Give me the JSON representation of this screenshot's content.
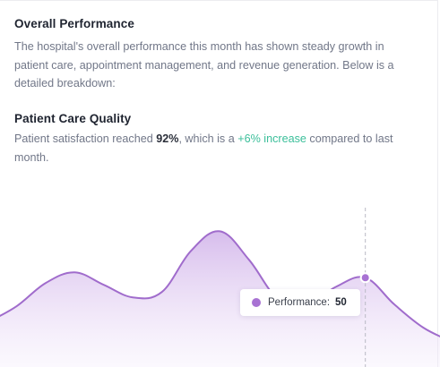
{
  "overall": {
    "title": "Overall Performance",
    "description": "The hospital's overall performance this month has shown steady growth in patient care, appointment management, and revenue generation. Below is a detailed breakdown:"
  },
  "patient_care": {
    "title": "Patient Care Quality",
    "text_before": "Patient satisfaction reached ",
    "value": "92%",
    "text_middle": ", which is a ",
    "change": "+6% increase",
    "text_after": " compared to last month."
  },
  "colors": {
    "accent": "#a872d3",
    "positive": "#3bbf9a"
  },
  "chart_data": {
    "type": "area",
    "series": [
      {
        "name": "Performance",
        "values": [
          25,
          34,
          47,
          53,
          46,
          39,
          42,
          65,
          76,
          60,
          38,
          35,
          45,
          50,
          35,
          22,
          14
        ]
      }
    ],
    "ylim": [
      0,
      100
    ],
    "highlight": {
      "index": 13,
      "label": "Performance:",
      "value": "50"
    }
  }
}
